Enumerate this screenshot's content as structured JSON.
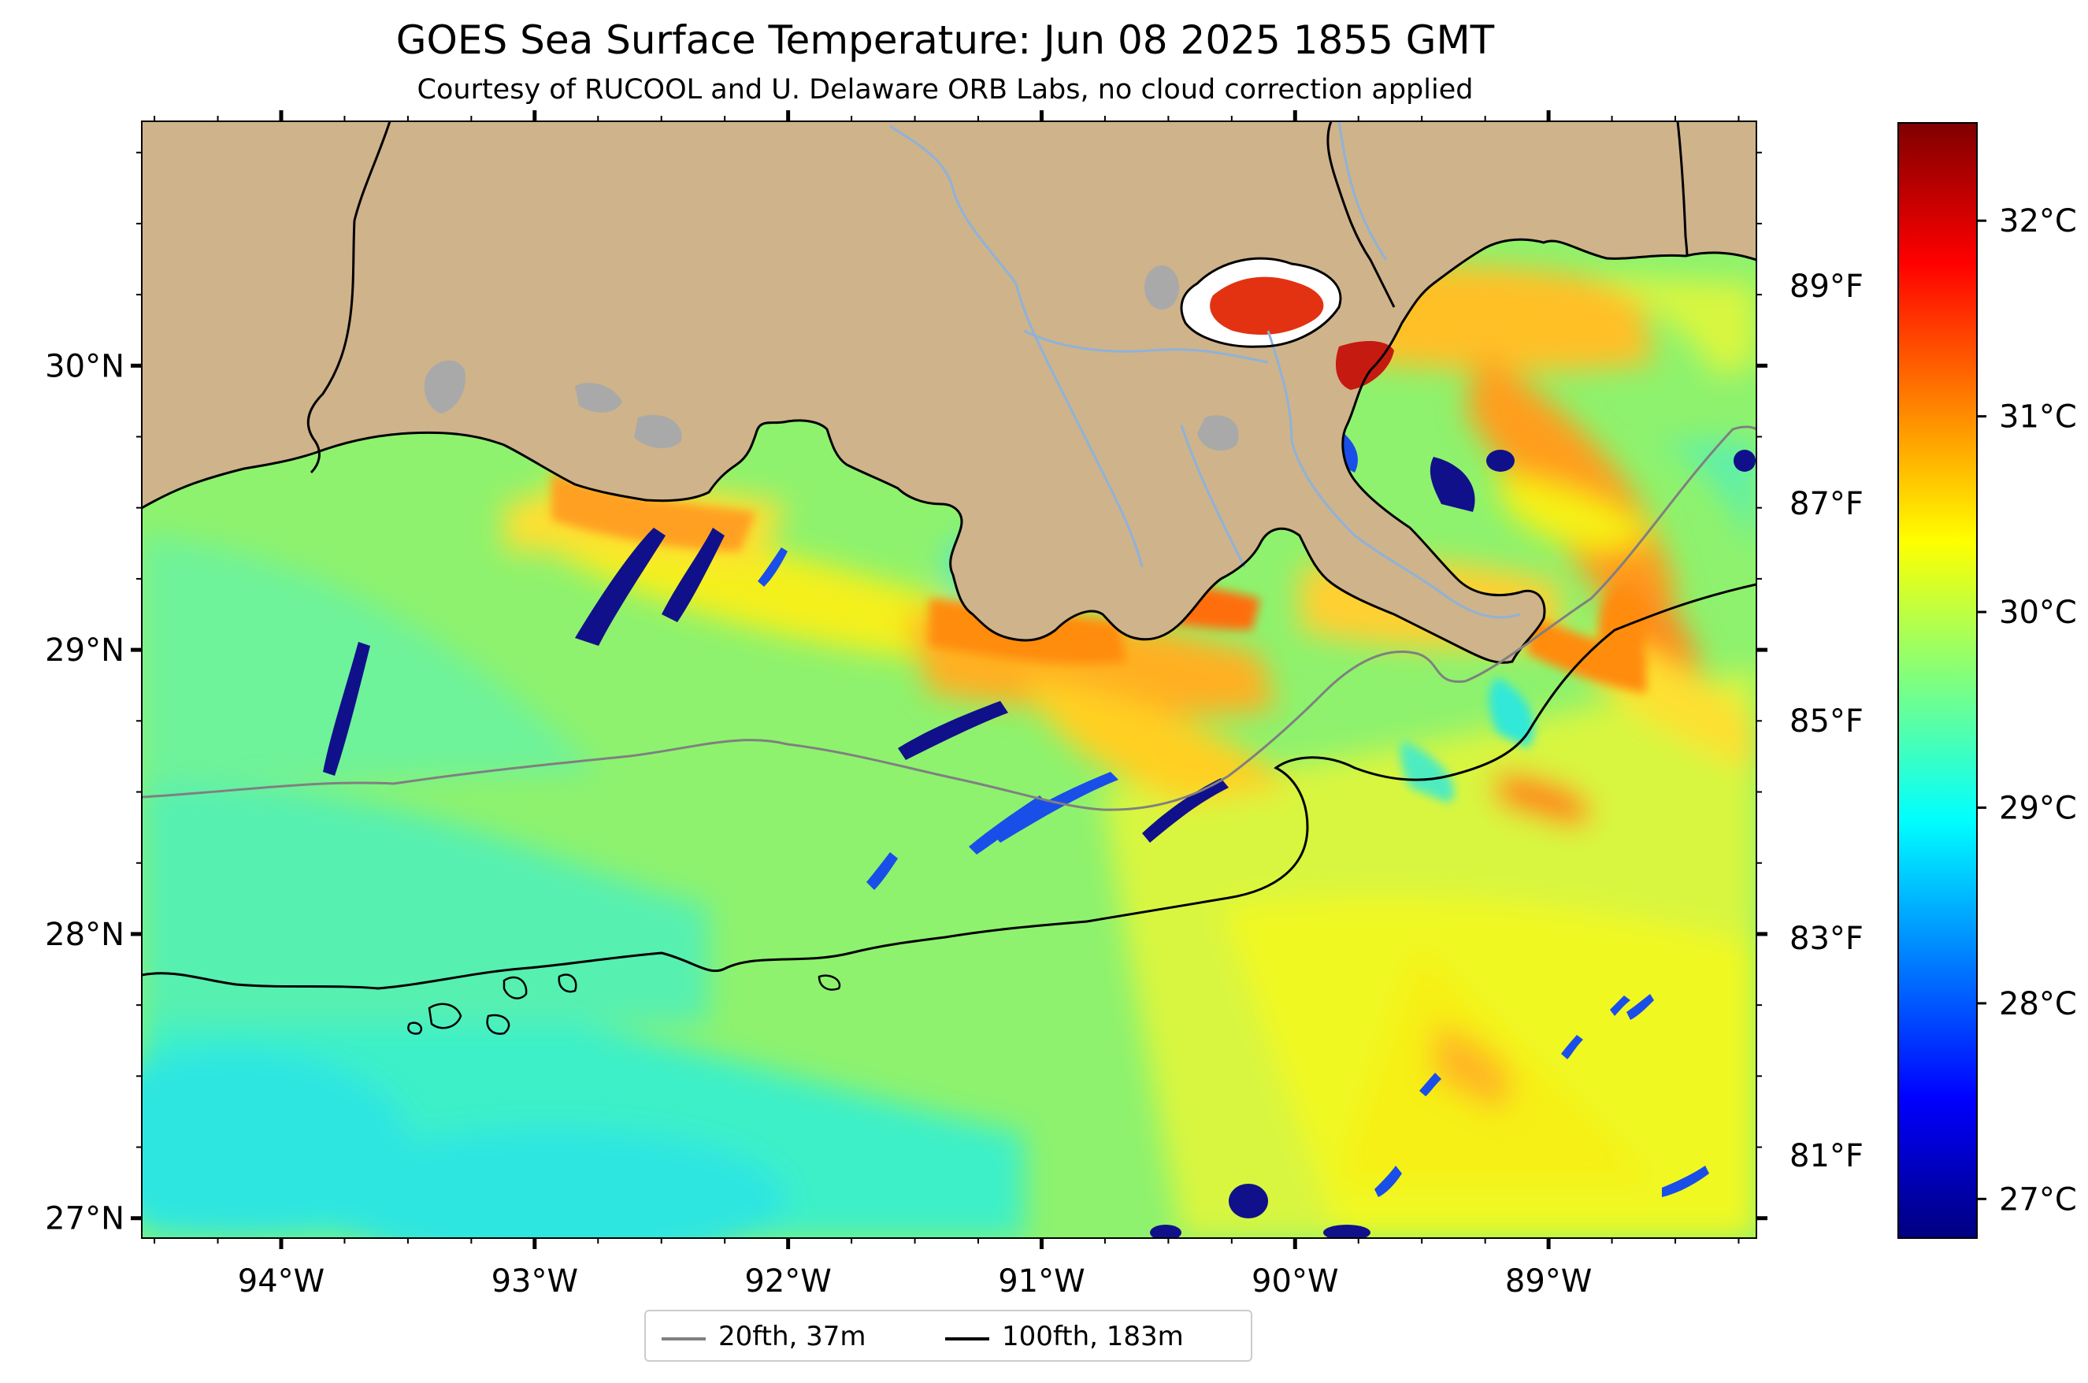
{
  "map": {
    "title": "GOES Sea Surface Temperature: Jun 08 2025 1855 GMT",
    "subtitle": "Courtesy of RUCOOL and U. Delaware ORB Labs, no cloud correction applied",
    "extent": {
      "lon_min": -94.55,
      "lon_max": -88.18,
      "lat_min": 26.93,
      "lat_max": 30.86
    },
    "lon_ticks": [
      {
        "value": -94,
        "label": "94°W"
      },
      {
        "value": -93,
        "label": "93°W"
      },
      {
        "value": -92,
        "label": "92°W"
      },
      {
        "value": -91,
        "label": "91°W"
      },
      {
        "value": -90,
        "label": "90°W"
      },
      {
        "value": -89,
        "label": "89°W"
      }
    ],
    "lat_ticks": [
      {
        "value": 30,
        "label": "30°N"
      },
      {
        "value": 29,
        "label": "29°N"
      },
      {
        "value": 28,
        "label": "28°N"
      },
      {
        "value": 27,
        "label": "27°N"
      }
    ],
    "colors": {
      "land": "#cfb38a",
      "lakes": "#a9a9a9",
      "rivers": "#8fb2d9",
      "isobath_20": "#808080",
      "isobath_100": "#000000"
    }
  },
  "colorbar": {
    "range_c": [
      26.8,
      32.5
    ],
    "celsius_ticks": [
      {
        "value": 27,
        "label": "27°C"
      },
      {
        "value": 28,
        "label": "28°C"
      },
      {
        "value": 29,
        "label": "29°C"
      },
      {
        "value": 30,
        "label": "30°C"
      },
      {
        "value": 31,
        "label": "31°C"
      },
      {
        "value": 32,
        "label": "32°C"
      }
    ],
    "fahrenheit_ticks": [
      {
        "value_f": 81,
        "label": "81°F"
      },
      {
        "value_f": 83,
        "label": "83°F"
      },
      {
        "value_f": 85,
        "label": "85°F"
      },
      {
        "value_f": 87,
        "label": "87°F"
      },
      {
        "value_f": 89,
        "label": "89°F"
      }
    ],
    "colormap": [
      "#00007f",
      "#0000ff",
      "#007fff",
      "#00ffff",
      "#7fff7f",
      "#ffff00",
      "#ff7f00",
      "#ff0000",
      "#7f0000"
    ]
  },
  "legend": {
    "items": [
      {
        "label": "20fth, 37m",
        "color": "#808080"
      },
      {
        "label": "100fth, 183m",
        "color": "#000000"
      }
    ]
  }
}
